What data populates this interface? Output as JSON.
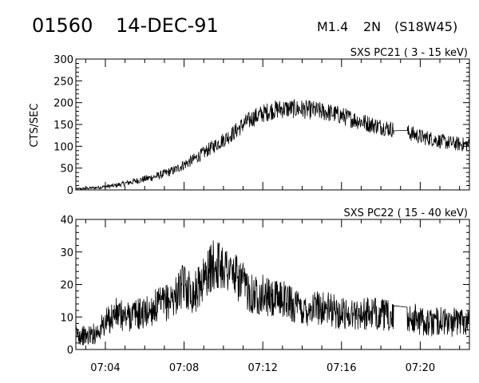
{
  "header": {
    "event_number": "01560",
    "date": "14-DEC-91",
    "flare_class": "M1.4",
    "importance": "2N",
    "location": "(S18W45)"
  },
  "chart_data": [
    {
      "type": "line",
      "title": "SXS PC21  (  3 - 15 keV)",
      "ylabel": "CTS/SEC",
      "xlabel": "",
      "ylim": [
        0,
        300
      ],
      "y_ticks": [
        "0",
        "50",
        "100",
        "150",
        "200",
        "250",
        "300"
      ],
      "xlim": [
        "07:02:30",
        "07:22:30"
      ],
      "x_ticks": [
        "07:04",
        "07:08",
        "07:12",
        "07:16",
        "07:20"
      ],
      "grid": false,
      "series": [
        {
          "x": [
            "07:02:30",
            "07:03:30",
            "07:04:30",
            "07:05:30",
            "07:06:30",
            "07:07:30",
            "07:08:00",
            "07:08:30",
            "07:09:00",
            "07:09:30",
            "07:10:00",
            "07:10:30",
            "07:11:00",
            "07:11:30",
            "07:12:00",
            "07:12:30",
            "07:13:00",
            "07:13:30",
            "07:14:00",
            "07:14:30",
            "07:15:00",
            "07:15:30",
            "07:16:00",
            "07:16:30",
            "07:17:00",
            "07:17:30",
            "07:18:00",
            "07:18:30",
            "07:19:00",
            "07:19:30",
            "07:20:00",
            "07:20:30",
            "07:21:00",
            "07:21:30",
            "07:22:00",
            "07:22:30"
          ],
          "values": [
            2,
            5,
            10,
            20,
            30,
            45,
            58,
            70,
            85,
            100,
            115,
            130,
            150,
            165,
            175,
            183,
            186,
            186,
            185,
            183,
            180,
            176,
            170,
            163,
            157,
            150,
            145,
            140,
            135,
            130,
            122,
            118,
            112,
            108,
            105,
            103
          ]
        }
      ]
    },
    {
      "type": "line",
      "title": "SXS PC22  ( 15 - 40 keV)",
      "ylabel": "",
      "xlabel": "",
      "ylim": [
        0,
        40
      ],
      "y_ticks": [
        "0",
        "10",
        "20",
        "30",
        "40"
      ],
      "xlim": [
        "07:02:30",
        "07:22:30"
      ],
      "x_ticks": [
        "07:04",
        "07:08",
        "07:12",
        "07:16",
        "07:20"
      ],
      "grid": false,
      "series": [
        {
          "x": [
            "07:02:30",
            "07:03:00",
            "07:03:30",
            "07:04:00",
            "07:04:30",
            "07:05:00",
            "07:05:30",
            "07:06:00",
            "07:06:30",
            "07:07:00",
            "07:07:30",
            "07:08:00",
            "07:08:30",
            "07:09:00",
            "07:09:30",
            "07:10:00",
            "07:10:30",
            "07:11:00",
            "07:11:30",
            "07:12:00",
            "07:12:30",
            "07:13:00",
            "07:13:30",
            "07:14:00",
            "07:14:30",
            "07:15:00",
            "07:15:30",
            "07:16:00",
            "07:16:30",
            "07:17:00",
            "07:17:30",
            "07:18:00",
            "07:18:30",
            "07:19:00",
            "07:19:30",
            "07:20:00",
            "07:20:30",
            "07:21:00",
            "07:21:30",
            "07:22:00",
            "07:22:30"
          ],
          "values": [
            5,
            4,
            5,
            8,
            11,
            10,
            11,
            11,
            13,
            14,
            16,
            20,
            17,
            22,
            26,
            26,
            23,
            20,
            17,
            17,
            15,
            16,
            14,
            12,
            13,
            13,
            12,
            11,
            11,
            11,
            11,
            11,
            10,
            8,
            10,
            9,
            8,
            9,
            8,
            9,
            9
          ]
        }
      ]
    }
  ]
}
